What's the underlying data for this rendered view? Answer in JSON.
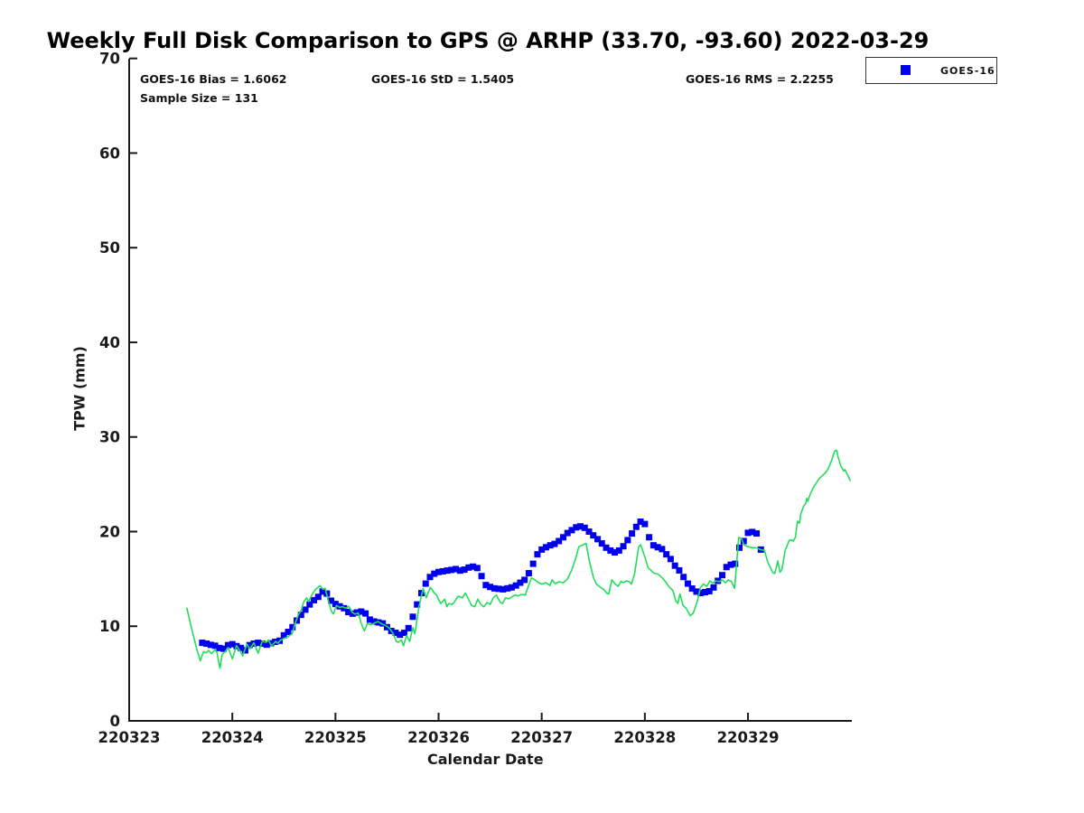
{
  "header": {
    "title": "Weekly Full Disk Comparison to GPS @ ARHP (33.70, -93.60) 2022-03-29"
  },
  "annotations": {
    "bias": "GOES-16 Bias = 1.6062",
    "std": "GOES-16 StD = 1.5405",
    "rms": "GOES-16 RMS = 2.2255",
    "sample_size": "Sample Size = 131"
  },
  "legend": {
    "items": [
      {
        "label": "GOES-16",
        "marker": "square",
        "marker_color": "#0000ee"
      }
    ]
  },
  "colors": {
    "goes16": "#0000ee",
    "gps_line": "#22dd5a",
    "axis": "#1a1a1a"
  },
  "chart_data": {
    "type": "line+scatter",
    "title": "Weekly Full Disk Comparison to GPS @ ARHP (33.70, -93.60) 2022-03-29",
    "xlabel": "Calendar Date",
    "ylabel": "TPW (mm)",
    "xlim": [
      220323,
      220330
    ],
    "ylim": [
      0,
      70
    ],
    "x_ticks": [
      220323,
      220324,
      220325,
      220326,
      220327,
      220328,
      220329
    ],
    "y_ticks": [
      0,
      10,
      20,
      30,
      40,
      50,
      60,
      70
    ],
    "grid": false,
    "legend_position": "top-right",
    "series": [
      {
        "name": "GOES-16",
        "type": "scatter",
        "marker": "square",
        "color": "#0000ee",
        "x_start": 220323.7083,
        "x_step": 0.0416667,
        "values": [
          8.25,
          8.16,
          8.03,
          7.94,
          7.7,
          7.62,
          8.0,
          8.1,
          7.9,
          7.7,
          7.45,
          8.0,
          8.16,
          8.25,
          8.16,
          8.05,
          8.2,
          8.35,
          8.47,
          9.04,
          9.4,
          9.9,
          10.6,
          11.2,
          11.75,
          12.3,
          12.75,
          13.1,
          13.66,
          13.45,
          12.7,
          12.35,
          12.1,
          11.9,
          11.5,
          11.33,
          11.45,
          11.55,
          11.35,
          10.7,
          10.5,
          10.4,
          10.3,
          9.9,
          9.5,
          9.3,
          9.1,
          9.3,
          9.8,
          11.0,
          12.3,
          13.5,
          14.5,
          15.2,
          15.55,
          15.73,
          15.8,
          15.88,
          15.95,
          16.04,
          15.88,
          15.98,
          16.2,
          16.3,
          16.15,
          15.3,
          14.35,
          14.15,
          14.0,
          13.95,
          13.9,
          14.0,
          14.1,
          14.3,
          14.6,
          14.9,
          15.6,
          16.6,
          17.6,
          18.1,
          18.35,
          18.55,
          18.7,
          19.0,
          19.4,
          19.85,
          20.15,
          20.45,
          20.55,
          20.4,
          20.0,
          19.6,
          19.2,
          18.75,
          18.3,
          18.0,
          17.8,
          18.0,
          18.45,
          19.1,
          19.8,
          20.5,
          21.05,
          20.8,
          19.4,
          18.55,
          18.35,
          18.15,
          17.6,
          17.1,
          16.4,
          15.9,
          15.2,
          14.5,
          13.98,
          13.66,
          13.5,
          13.6,
          13.7,
          14.1,
          14.8,
          15.4,
          16.25,
          16.5,
          16.6,
          18.3,
          19.0,
          19.87,
          19.96,
          19.8,
          18.1
        ]
      },
      {
        "name": "GPS",
        "type": "line",
        "color": "#22dd5a",
        "points": [
          [
            220323.56,
            11.9
          ],
          [
            220323.6,
            10.0
          ],
          [
            220323.65,
            7.8
          ],
          [
            220323.69,
            6.35
          ],
          [
            220323.72,
            7.3
          ],
          [
            220323.75,
            7.2
          ],
          [
            220323.77,
            7.45
          ],
          [
            220323.8,
            7.1
          ],
          [
            220323.83,
            7.5
          ],
          [
            220323.85,
            7.3
          ],
          [
            220323.88,
            5.55
          ],
          [
            220323.9,
            7.0
          ],
          [
            220323.93,
            7.3
          ],
          [
            220323.96,
            7.75
          ],
          [
            220324.0,
            6.55
          ],
          [
            220324.04,
            7.95
          ],
          [
            220324.08,
            7.3
          ],
          [
            220324.1,
            6.85
          ],
          [
            220324.14,
            8.1
          ],
          [
            220324.17,
            7.6
          ],
          [
            220324.21,
            8.25
          ],
          [
            220324.25,
            7.15
          ],
          [
            220324.29,
            8.4
          ],
          [
            220324.33,
            8.3
          ],
          [
            220324.35,
            8.55
          ],
          [
            220324.38,
            7.9
          ],
          [
            220324.42,
            8.4
          ],
          [
            220324.44,
            8.2
          ],
          [
            220324.47,
            8.55
          ],
          [
            220324.5,
            8.7
          ],
          [
            220324.54,
            8.9
          ],
          [
            220324.58,
            9.2
          ],
          [
            220324.61,
            10.3
          ],
          [
            220324.64,
            11.2
          ],
          [
            220324.67,
            11.75
          ],
          [
            220324.69,
            12.5
          ],
          [
            220324.72,
            13.0
          ],
          [
            220324.74,
            12.6
          ],
          [
            220324.77,
            13.3
          ],
          [
            220324.8,
            13.8
          ],
          [
            220324.83,
            14.1
          ],
          [
            220324.85,
            14.3
          ],
          [
            220324.88,
            13.9
          ],
          [
            220324.9,
            14.0
          ],
          [
            220324.93,
            12.7
          ],
          [
            220324.96,
            11.6
          ],
          [
            220324.98,
            11.3
          ],
          [
            220325.01,
            12.2
          ],
          [
            220325.04,
            12.0
          ],
          [
            220325.07,
            12.06
          ],
          [
            220325.1,
            11.9
          ],
          [
            220325.13,
            12.1
          ],
          [
            220325.16,
            11.5
          ],
          [
            220325.19,
            11.27
          ],
          [
            220325.22,
            11.4
          ],
          [
            220325.25,
            10.3
          ],
          [
            220325.28,
            9.5
          ],
          [
            220325.31,
            10.3
          ],
          [
            220325.34,
            10.15
          ],
          [
            220325.37,
            10.3
          ],
          [
            220325.41,
            10.5
          ],
          [
            220325.44,
            10.3
          ],
          [
            220325.47,
            10.15
          ],
          [
            220325.5,
            10.0
          ],
          [
            220325.53,
            9.7
          ],
          [
            220325.56,
            9.2
          ],
          [
            220325.59,
            8.4
          ],
          [
            220325.61,
            8.3
          ],
          [
            220325.64,
            8.55
          ],
          [
            220325.66,
            7.93
          ],
          [
            220325.69,
            9.04
          ],
          [
            220325.72,
            8.4
          ],
          [
            220325.75,
            9.84
          ],
          [
            220325.77,
            9.2
          ],
          [
            220325.81,
            12.06
          ],
          [
            220325.85,
            13.98
          ],
          [
            220325.88,
            13.0
          ],
          [
            220325.92,
            14.1
          ],
          [
            220325.96,
            13.5
          ],
          [
            220325.98,
            13.3
          ],
          [
            220326.02,
            12.4
          ],
          [
            220326.06,
            12.86
          ],
          [
            220326.08,
            12.06
          ],
          [
            220326.1,
            12.4
          ],
          [
            220326.13,
            12.3
          ],
          [
            220326.15,
            12.5
          ],
          [
            220326.17,
            12.86
          ],
          [
            220326.19,
            13.18
          ],
          [
            220326.23,
            13.0
          ],
          [
            220326.26,
            13.5
          ],
          [
            220326.29,
            12.86
          ],
          [
            220326.32,
            12.2
          ],
          [
            220326.35,
            12.06
          ],
          [
            220326.38,
            12.86
          ],
          [
            220326.41,
            12.3
          ],
          [
            220326.44,
            12.06
          ],
          [
            220326.47,
            12.5
          ],
          [
            220326.5,
            12.3
          ],
          [
            220326.53,
            13.0
          ],
          [
            220326.56,
            13.3
          ],
          [
            220326.6,
            12.5
          ],
          [
            220326.62,
            12.4
          ],
          [
            220326.65,
            13.0
          ],
          [
            220326.68,
            12.9
          ],
          [
            220326.71,
            13.1
          ],
          [
            220326.74,
            13.3
          ],
          [
            220326.77,
            13.2
          ],
          [
            220326.8,
            13.35
          ],
          [
            220326.84,
            13.3
          ],
          [
            220326.87,
            14.2
          ],
          [
            220326.9,
            15.1
          ],
          [
            220326.93,
            14.93
          ],
          [
            220326.97,
            14.6
          ],
          [
            220327.0,
            14.45
          ],
          [
            220327.04,
            14.6
          ],
          [
            220327.08,
            14.3
          ],
          [
            220327.1,
            14.9
          ],
          [
            220327.13,
            14.5
          ],
          [
            220327.17,
            14.7
          ],
          [
            220327.21,
            14.6
          ],
          [
            220327.25,
            15.0
          ],
          [
            220327.29,
            15.9
          ],
          [
            220327.33,
            17.2
          ],
          [
            220327.36,
            18.4
          ],
          [
            220327.4,
            18.6
          ],
          [
            220327.43,
            18.75
          ],
          [
            220327.46,
            17.0
          ],
          [
            220327.5,
            15.2
          ],
          [
            220327.53,
            14.45
          ],
          [
            220327.57,
            14.1
          ],
          [
            220327.6,
            13.9
          ],
          [
            220327.63,
            13.5
          ],
          [
            220327.65,
            13.4
          ],
          [
            220327.68,
            14.9
          ],
          [
            220327.71,
            14.5
          ],
          [
            220327.74,
            14.2
          ],
          [
            220327.77,
            14.75
          ],
          [
            220327.79,
            14.6
          ],
          [
            220327.82,
            14.8
          ],
          [
            220327.85,
            14.7
          ],
          [
            220327.87,
            14.45
          ],
          [
            220327.9,
            15.5
          ],
          [
            220327.94,
            18.4
          ],
          [
            220327.96,
            18.6
          ],
          [
            220328.0,
            17.3
          ],
          [
            220328.03,
            16.2
          ],
          [
            220328.06,
            15.9
          ],
          [
            220328.09,
            15.6
          ],
          [
            220328.13,
            15.5
          ],
          [
            220328.17,
            15.1
          ],
          [
            220328.2,
            14.7
          ],
          [
            220328.24,
            14.1
          ],
          [
            220328.27,
            13.8
          ],
          [
            220328.3,
            12.7
          ],
          [
            220328.32,
            12.4
          ],
          [
            220328.34,
            13.4
          ],
          [
            220328.37,
            12.2
          ],
          [
            220328.4,
            11.9
          ],
          [
            220328.44,
            11.1
          ],
          [
            220328.47,
            11.4
          ],
          [
            220328.51,
            12.7
          ],
          [
            220328.54,
            14.1
          ],
          [
            220328.57,
            14.45
          ],
          [
            220328.6,
            14.2
          ],
          [
            220328.63,
            14.8
          ],
          [
            220328.66,
            14.55
          ],
          [
            220328.69,
            14.8
          ],
          [
            220328.72,
            14.7
          ],
          [
            220328.75,
            14.9
          ],
          [
            220328.78,
            14.6
          ],
          [
            220328.81,
            14.9
          ],
          [
            220328.84,
            14.7
          ],
          [
            220328.87,
            14.0
          ],
          [
            220328.91,
            19.4
          ],
          [
            220328.94,
            19.2
          ],
          [
            220328.96,
            18.6
          ],
          [
            220329.0,
            18.4
          ],
          [
            220329.04,
            18.3
          ],
          [
            220329.08,
            18.3
          ],
          [
            220329.12,
            18.1
          ],
          [
            220329.16,
            18.0
          ],
          [
            220329.19,
            16.84
          ],
          [
            220329.24,
            15.66
          ],
          [
            220329.26,
            15.57
          ],
          [
            220329.29,
            16.9
          ],
          [
            220329.31,
            15.7
          ],
          [
            220329.33,
            16.0
          ],
          [
            220329.36,
            18.0
          ],
          [
            220329.4,
            19.07
          ],
          [
            220329.42,
            19.1
          ],
          [
            220329.44,
            19.0
          ],
          [
            220329.46,
            19.4
          ],
          [
            220329.48,
            21.1
          ],
          [
            220329.5,
            20.9
          ],
          [
            220329.51,
            21.8
          ],
          [
            220329.54,
            22.7
          ],
          [
            220329.56,
            23.0
          ],
          [
            220329.57,
            23.5
          ],
          [
            220329.58,
            23.2
          ],
          [
            220329.6,
            23.85
          ],
          [
            220329.63,
            24.6
          ],
          [
            220329.66,
            25.1
          ],
          [
            220329.69,
            25.6
          ],
          [
            220329.72,
            25.9
          ],
          [
            220329.75,
            26.2
          ],
          [
            220329.78,
            26.7
          ],
          [
            220329.81,
            27.5
          ],
          [
            220329.84,
            28.5
          ],
          [
            220329.86,
            28.6
          ],
          [
            220329.87,
            28.0
          ],
          [
            220329.89,
            27.35
          ],
          [
            220329.9,
            26.9
          ],
          [
            220329.93,
            26.4
          ],
          [
            220329.94,
            26.55
          ],
          [
            220329.97,
            25.9
          ],
          [
            220329.99,
            25.4
          ]
        ]
      }
    ]
  }
}
